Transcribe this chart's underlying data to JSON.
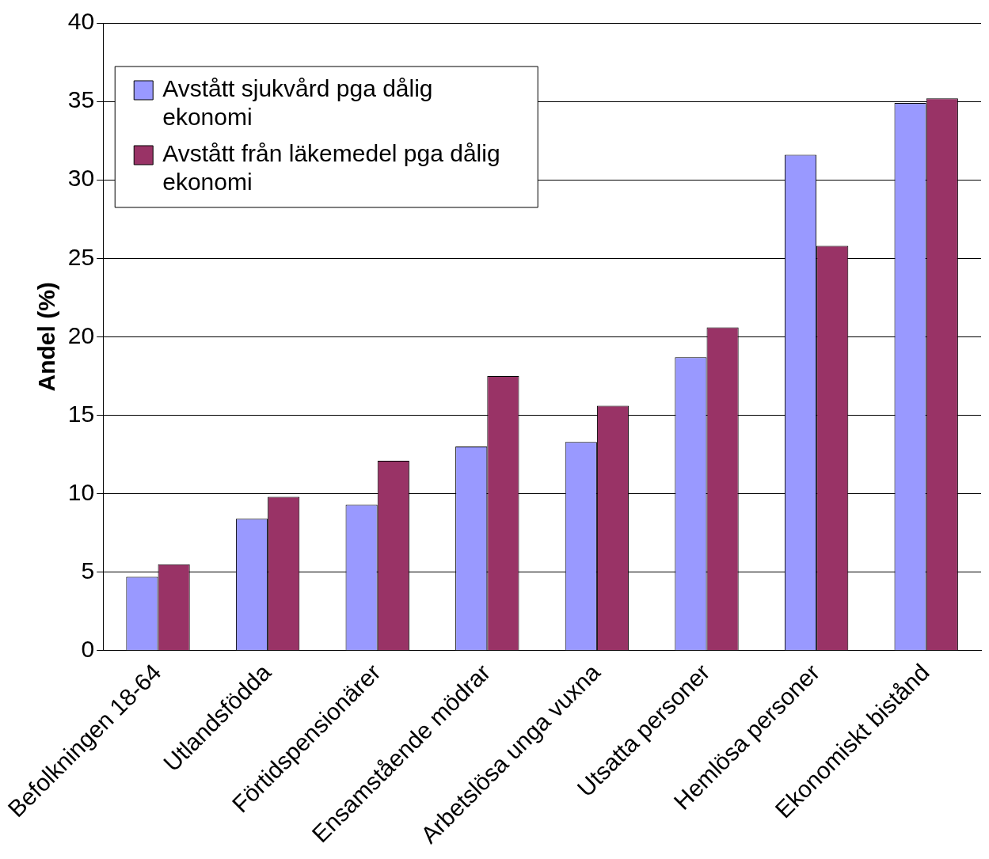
{
  "chart_data": {
    "type": "bar",
    "ylabel": "Andel (%)",
    "categories": [
      "Befolkningen 18-64",
      "Utlandsfödda",
      "Förtidspensionärer",
      "Ensamstående mödrar",
      "Arbetslösa unga vuxna",
      "Utsatta personer",
      "Hemlösa personer",
      "Ekonomiskt bistånd"
    ],
    "series": [
      {
        "name": "Avstått sjukvård pga dålig ekonomi",
        "color": "#9999ff",
        "values": [
          4.7,
          8.4,
          9.3,
          13.0,
          13.3,
          18.7,
          31.6,
          34.9
        ]
      },
      {
        "name": "Avstått från läkemedel pga dålig ekonomi",
        "color": "#993366",
        "values": [
          5.5,
          9.8,
          12.1,
          17.5,
          15.6,
          20.6,
          25.8,
          35.2
        ]
      }
    ],
    "ylim": [
      0,
      40
    ],
    "yticks": [
      0,
      5,
      10,
      15,
      20,
      25,
      30,
      35,
      40
    ],
    "grid": "y",
    "legend": "top left"
  }
}
